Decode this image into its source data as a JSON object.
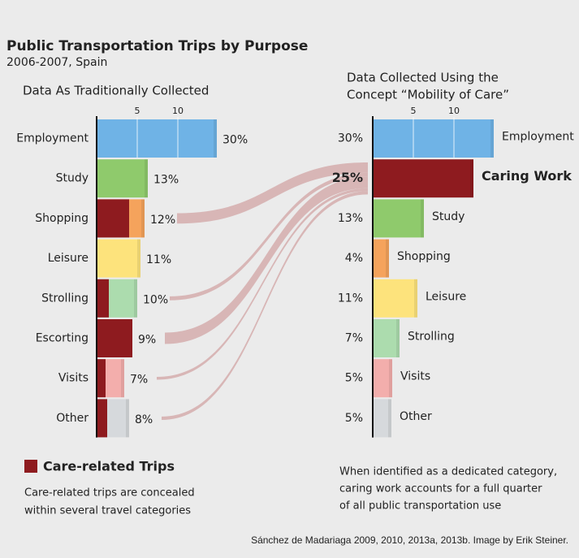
{
  "title": "Public Transportation Trips by Purpose",
  "subtitle": "2006-2007, Spain",
  "chart_data": [
    {
      "type": "bar",
      "orientation": "horizontal",
      "title": [
        "Data As Traditionally Collected"
      ],
      "categories": [
        "Employment",
        "Study",
        "Shopping",
        "Leisure",
        "Strolling",
        "Escorting",
        "Visits",
        "Other"
      ],
      "values": [
        14.8,
        6.3,
        5.9,
        5.4,
        5.0,
        4.4,
        3.4,
        4.0
      ],
      "value_labels": [
        "30%",
        "13%",
        "12%",
        "11%",
        "10%",
        "9%",
        "7%",
        "8%"
      ],
      "colors": [
        "#6fb3e6",
        "#8fca6c",
        "#f5a35c",
        "#fde37c",
        "#acdcae",
        "#8e1b1f",
        "#f3aeac",
        "#d6d9dc"
      ],
      "care_values": [
        0,
        0,
        4.0,
        0,
        1.5,
        4.4,
        1.1,
        1.3
      ],
      "care_color": "#8e1b1f",
      "flow_color": "#d6b0b0",
      "xlim": [
        0,
        15
      ],
      "xticks": [
        5,
        10
      ]
    },
    {
      "type": "bar",
      "orientation": "horizontal",
      "title": [
        "Data Collected Using the",
        "Concept “Mobility of Care”"
      ],
      "categories": [
        "Employment",
        "Caring Work",
        "Study",
        "Shopping",
        "Leisure",
        "Strolling",
        "Visits",
        "Other"
      ],
      "values": [
        14.9,
        12.4,
        6.3,
        2.0,
        5.5,
        3.3,
        2.4,
        2.3
      ],
      "value_labels": [
        "30%",
        "25%",
        "13%",
        "4%",
        "11%",
        "7%",
        "5%",
        "5%"
      ],
      "colors": [
        "#6fb3e6",
        "#8e1b1f",
        "#8fca6c",
        "#f5a35c",
        "#fde37c",
        "#acdcae",
        "#f3aeac",
        "#d6d9dc"
      ],
      "emphasis": [
        false,
        true,
        false,
        false,
        false,
        false,
        false,
        false
      ],
      "xlim": [
        0,
        15
      ],
      "xticks": [
        5,
        10
      ]
    }
  ],
  "legend": {
    "label": "Care-related Trips",
    "color": "#8e1b1f"
  },
  "left_note": [
    "Care-related trips are concealed",
    "within several travel categories"
  ],
  "right_note": [
    "When identified as a dedicated category,",
    "caring work accounts for a full quarter",
    "of all public transportation use"
  ],
  "source": "Sánchez de Madariaga 2009, 2010, 2013a, 2013b. Image by Erik Steiner."
}
